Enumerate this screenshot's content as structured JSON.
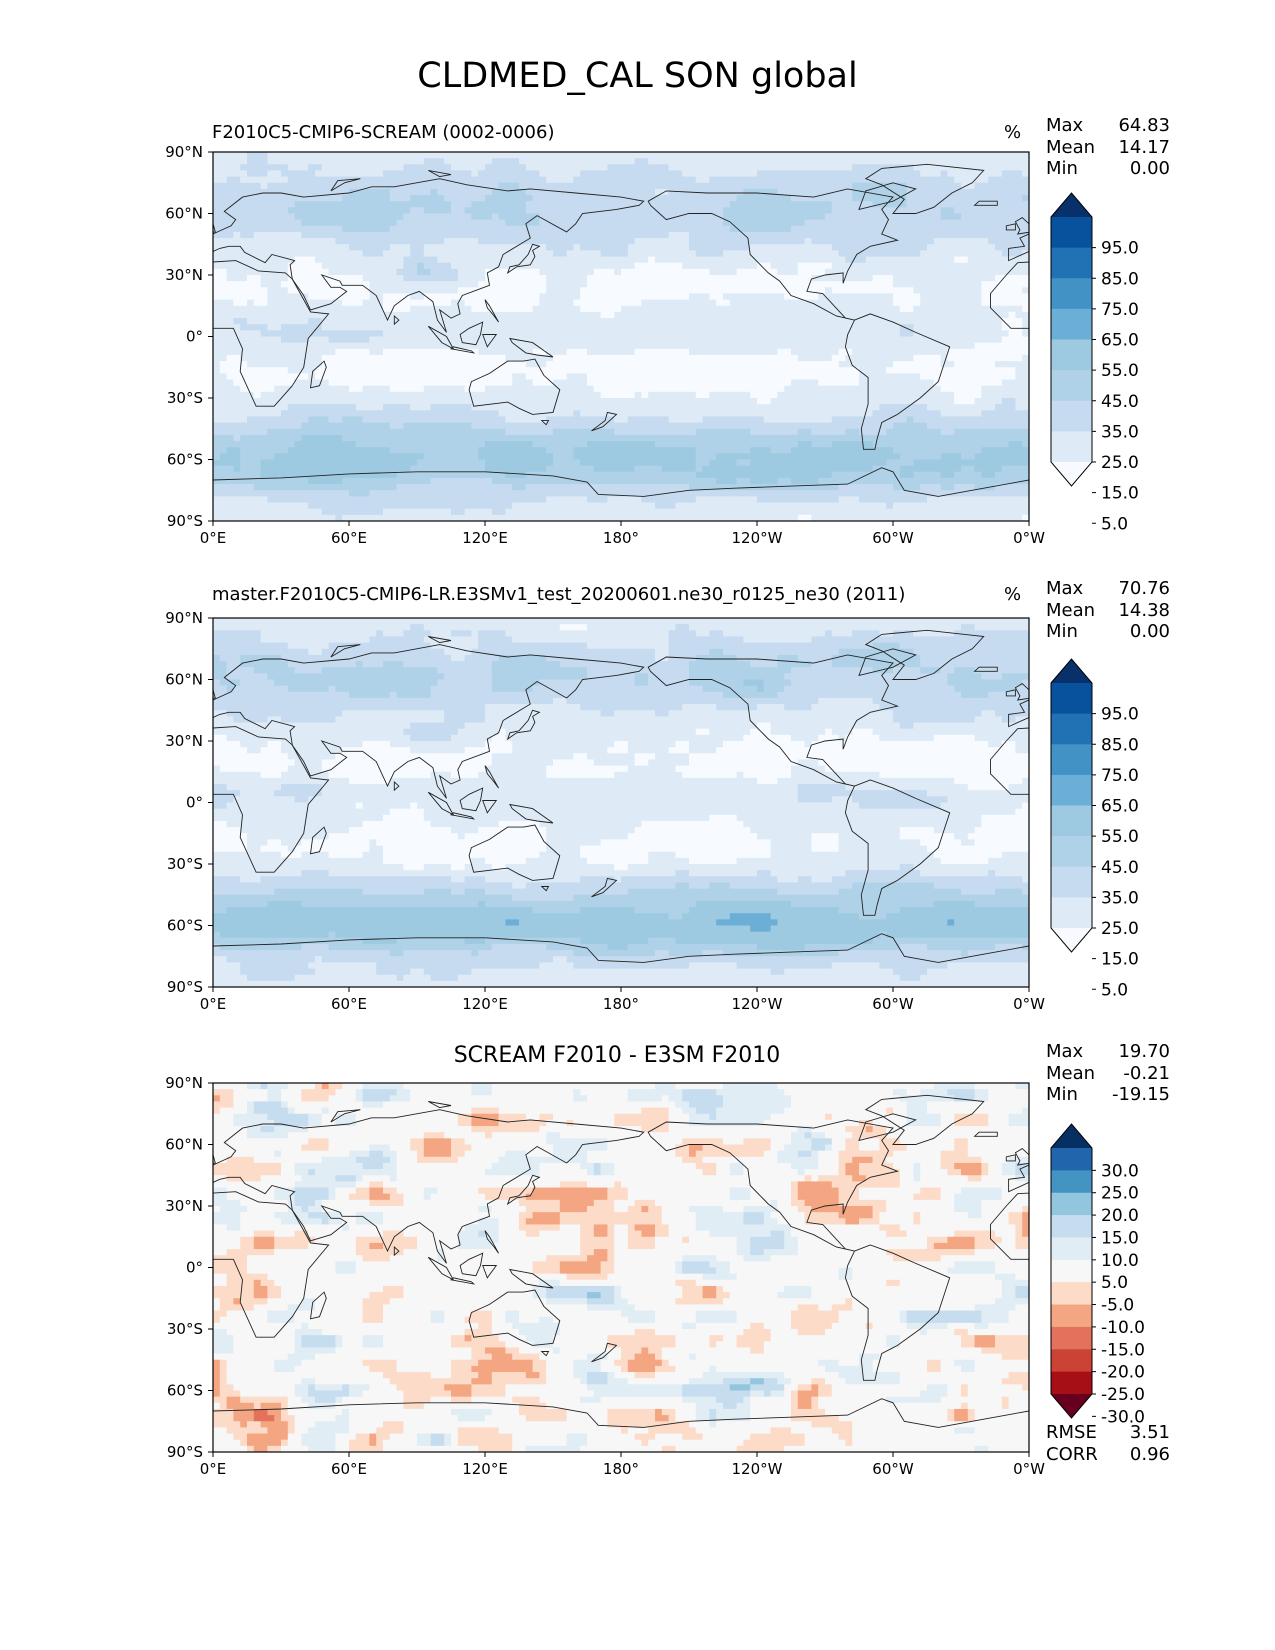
{
  "title": "CLDMED_CAL SON global",
  "colors": {
    "seq": [
      "#f7fbff",
      "#deebf7",
      "#c6dbef",
      "#b0d2e8",
      "#9ecae1",
      "#6baed6",
      "#4292c6",
      "#2171b5",
      "#08519c",
      "#08306b"
    ],
    "div": [
      "#67001f",
      "#a50f15",
      "#cb4335",
      "#e2725b",
      "#f4a582",
      "#fcdcc8",
      "#f7f7f7",
      "#e1edf5",
      "#c5ddee",
      "#92c5de",
      "#4393c3",
      "#2166ac",
      "#053061"
    ],
    "coast": "#222222"
  },
  "chart_data": [
    {
      "type": "heatmap",
      "title": "F2010C5-CMIP6-SCREAM (0002-0006)",
      "units": "%",
      "stats": {
        "max_label": "Max",
        "max": "64.83",
        "mean_label": "Mean",
        "mean": "14.17",
        "min_label": "Min",
        "min": "0.00"
      },
      "x_ticks": [
        "0°E",
        "60°E",
        "120°E",
        "180°",
        "120°W",
        "60°W",
        "0°W"
      ],
      "y_ticks": [
        "90°N",
        "60°N",
        "30°N",
        "0°",
        "30°S",
        "60°S",
        "90°S"
      ],
      "xlim": [
        0,
        360
      ],
      "ylim": [
        -90,
        90
      ],
      "colorbar": {
        "levels": [
          5,
          15,
          25,
          35,
          45,
          55,
          65,
          75,
          85,
          95
        ],
        "labels": [
          "95.0",
          "85.0",
          "75.0",
          "65.0",
          "55.0",
          "45.0",
          "35.0",
          "25.0",
          "15.0",
          "5.0"
        ],
        "extend": "both",
        "cmap": "seq"
      },
      "field": {
        "kind": "cloud",
        "variant": 0
      }
    },
    {
      "type": "heatmap",
      "title": "master.F2010C5-CMIP6-LR.E3SMv1_test_20200601.ne30_r0125_ne30 (2011)",
      "units": "%",
      "stats": {
        "max_label": "Max",
        "max": "70.76",
        "mean_label": "Mean",
        "mean": "14.38",
        "min_label": "Min",
        "min": "0.00"
      },
      "x_ticks": [
        "0°E",
        "60°E",
        "120°E",
        "180°",
        "120°W",
        "60°W",
        "0°W"
      ],
      "y_ticks": [
        "90°N",
        "60°N",
        "30°N",
        "0°",
        "30°S",
        "60°S",
        "90°S"
      ],
      "xlim": [
        0,
        360
      ],
      "ylim": [
        -90,
        90
      ],
      "colorbar": {
        "levels": [
          5,
          15,
          25,
          35,
          45,
          55,
          65,
          75,
          85,
          95
        ],
        "labels": [
          "95.0",
          "85.0",
          "75.0",
          "65.0",
          "55.0",
          "45.0",
          "35.0",
          "25.0",
          "15.0",
          "5.0"
        ],
        "extend": "both",
        "cmap": "seq"
      },
      "field": {
        "kind": "cloud",
        "variant": 1
      }
    },
    {
      "type": "heatmap",
      "title": "SCREAM F2010 - E3SM F2010",
      "units": "",
      "stats": {
        "max_label": "Max",
        "max": "19.70",
        "mean_label": "Mean",
        "mean": "-0.21",
        "min_label": "Min",
        "min": "-19.15"
      },
      "x_ticks": [
        "0°E",
        "60°E",
        "120°E",
        "180°",
        "120°W",
        "60°W",
        "0°W"
      ],
      "y_ticks": [
        "90°N",
        "60°N",
        "30°N",
        "0°",
        "30°S",
        "60°S",
        "90°S"
      ],
      "xlim": [
        0,
        360
      ],
      "ylim": [
        -90,
        90
      ],
      "colorbar": {
        "levels": [
          -30,
          -25,
          -20,
          -15,
          -10,
          -5,
          5,
          10,
          15,
          20,
          25,
          30
        ],
        "labels": [
          "30.0",
          "25.0",
          "20.0",
          "15.0",
          "10.0",
          "5.0",
          "-5.0",
          "-10.0",
          "-15.0",
          "-20.0",
          "-25.0",
          "-30.0"
        ],
        "extend": "both",
        "cmap": "div"
      },
      "metrics": {
        "rmse_label": "RMSE",
        "rmse": "3.51",
        "corr_label": "CORR",
        "corr": "0.96"
      },
      "field": {
        "kind": "diff",
        "variant": 2
      }
    }
  ]
}
